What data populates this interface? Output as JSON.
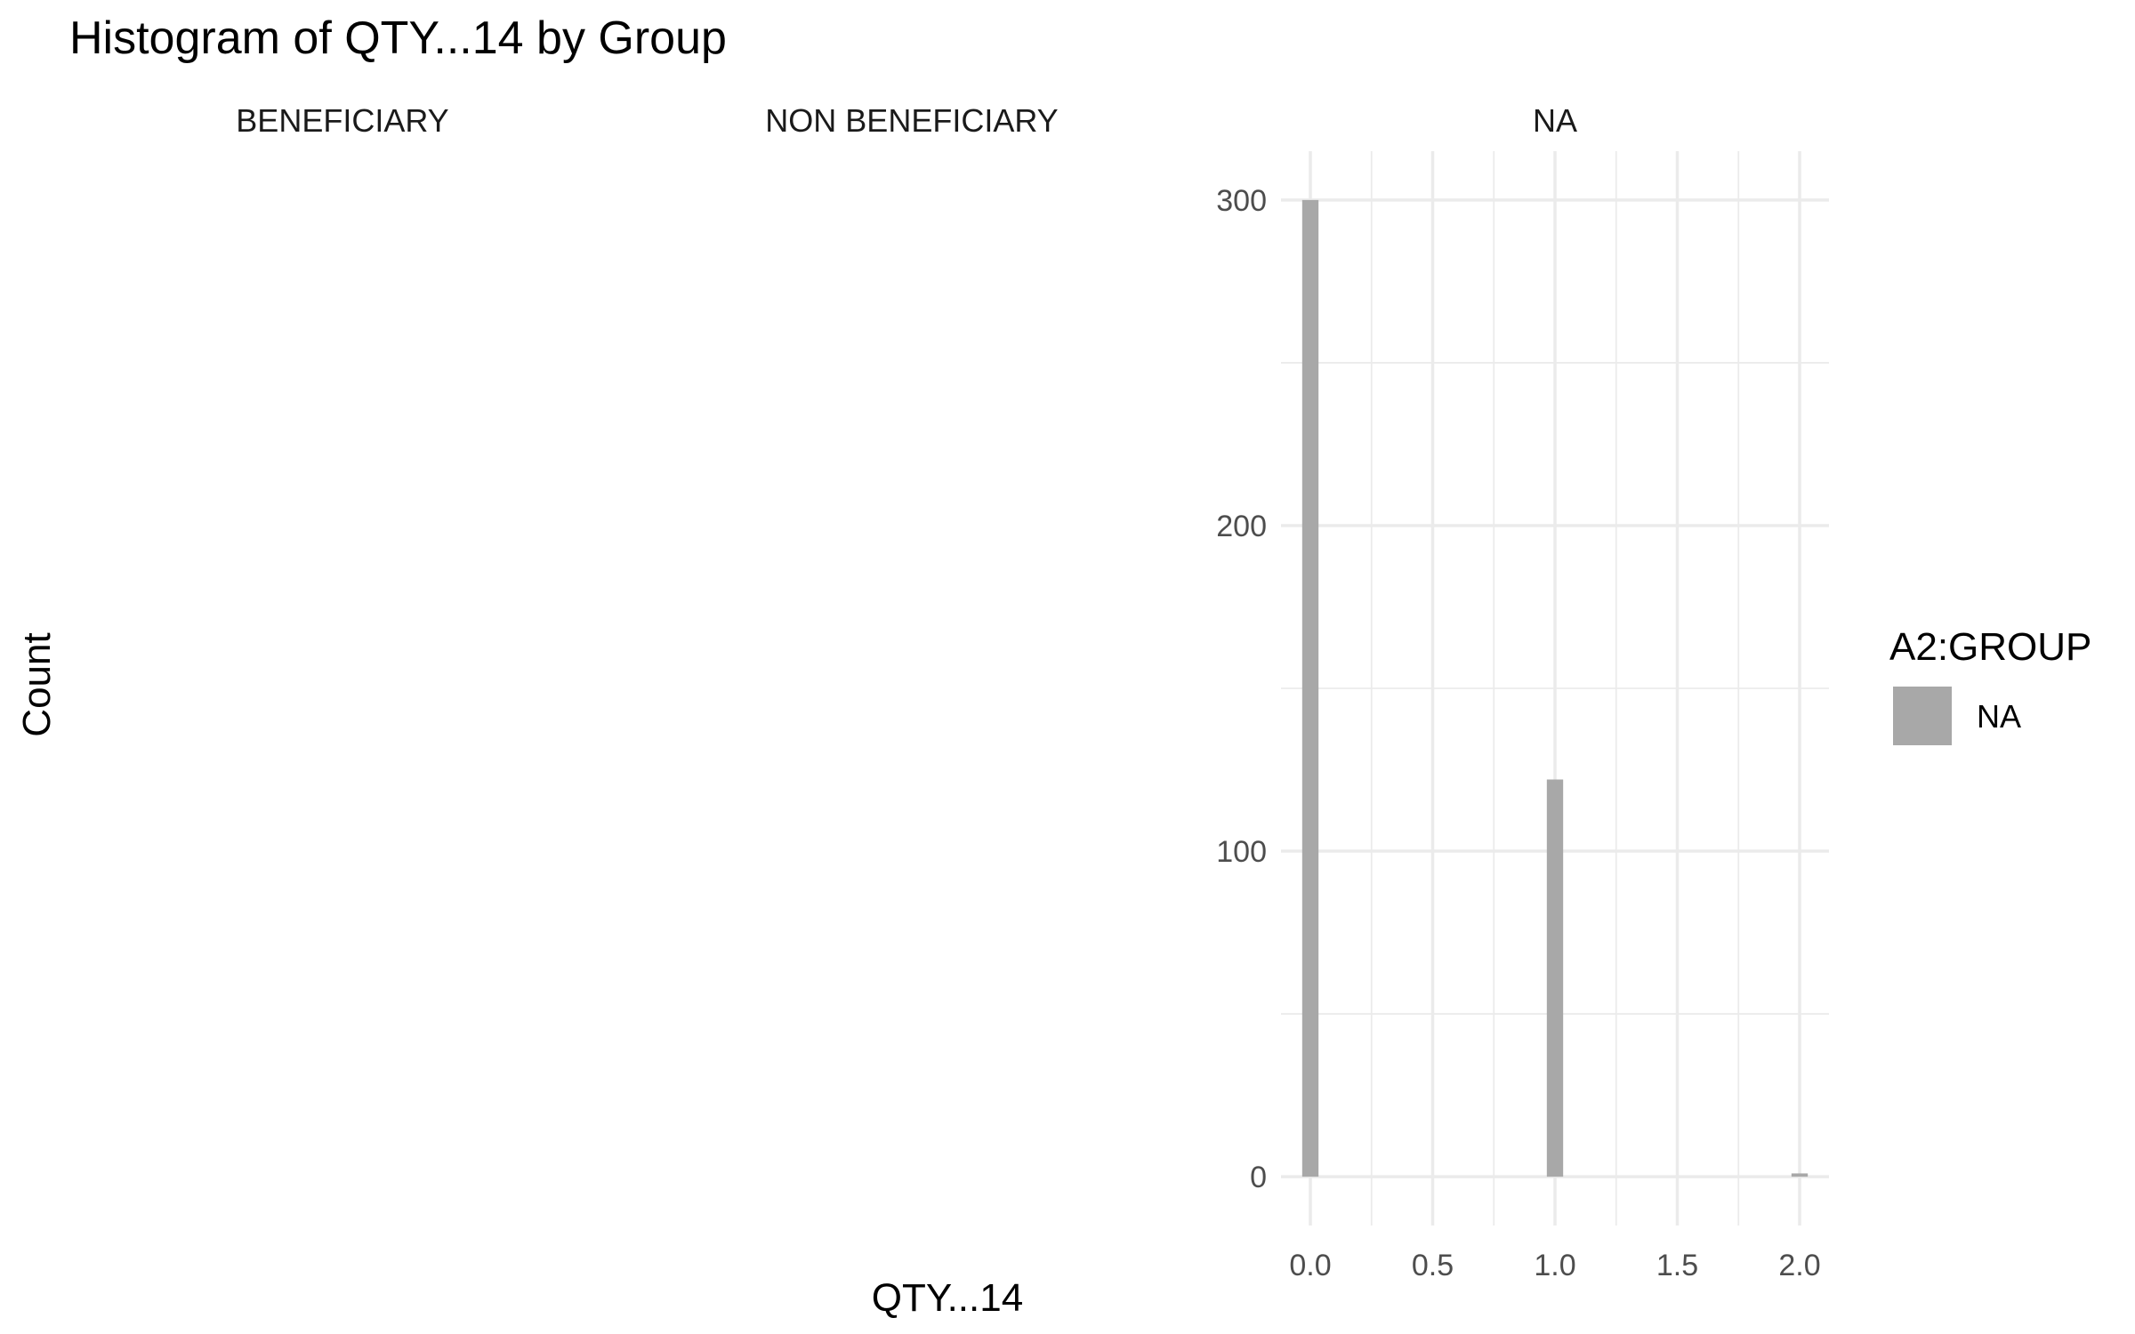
{
  "chart_data": {
    "type": "bar",
    "title": "Histogram of QTY...14 by Group",
    "xlabel": "QTY...14",
    "ylabel": "Count",
    "facets": [
      "BENEFICIARY",
      "NON BENEFICIARY",
      "NA"
    ],
    "panel_with_data": "NA",
    "xlim": [
      -0.12,
      2.12
    ],
    "ylim": [
      -15,
      315
    ],
    "x_ticks": [
      0.0,
      0.5,
      1.0,
      1.5,
      2.0
    ],
    "x_tick_labels": [
      "0.0",
      "0.5",
      "1.0",
      "1.5",
      "2.0"
    ],
    "y_ticks": [
      0,
      100,
      200,
      300
    ],
    "y_tick_labels": [
      "0",
      "100",
      "200",
      "300"
    ],
    "bin_width": 0.0667,
    "series": [
      {
        "name": "NA",
        "bins": [
          {
            "x": 0.0,
            "count": 300
          },
          {
            "x": 1.0,
            "count": 122
          },
          {
            "x": 2.0,
            "count": 1
          }
        ]
      }
    ],
    "legend": {
      "title": "A2:GROUP",
      "position": "right",
      "entries": [
        {
          "label": "NA",
          "color": "#a8a8a8"
        }
      ]
    },
    "colors": {
      "bar": "#a8a8a8",
      "grid": "#ebebeb",
      "background": "#ffffff"
    },
    "grid": true
  }
}
